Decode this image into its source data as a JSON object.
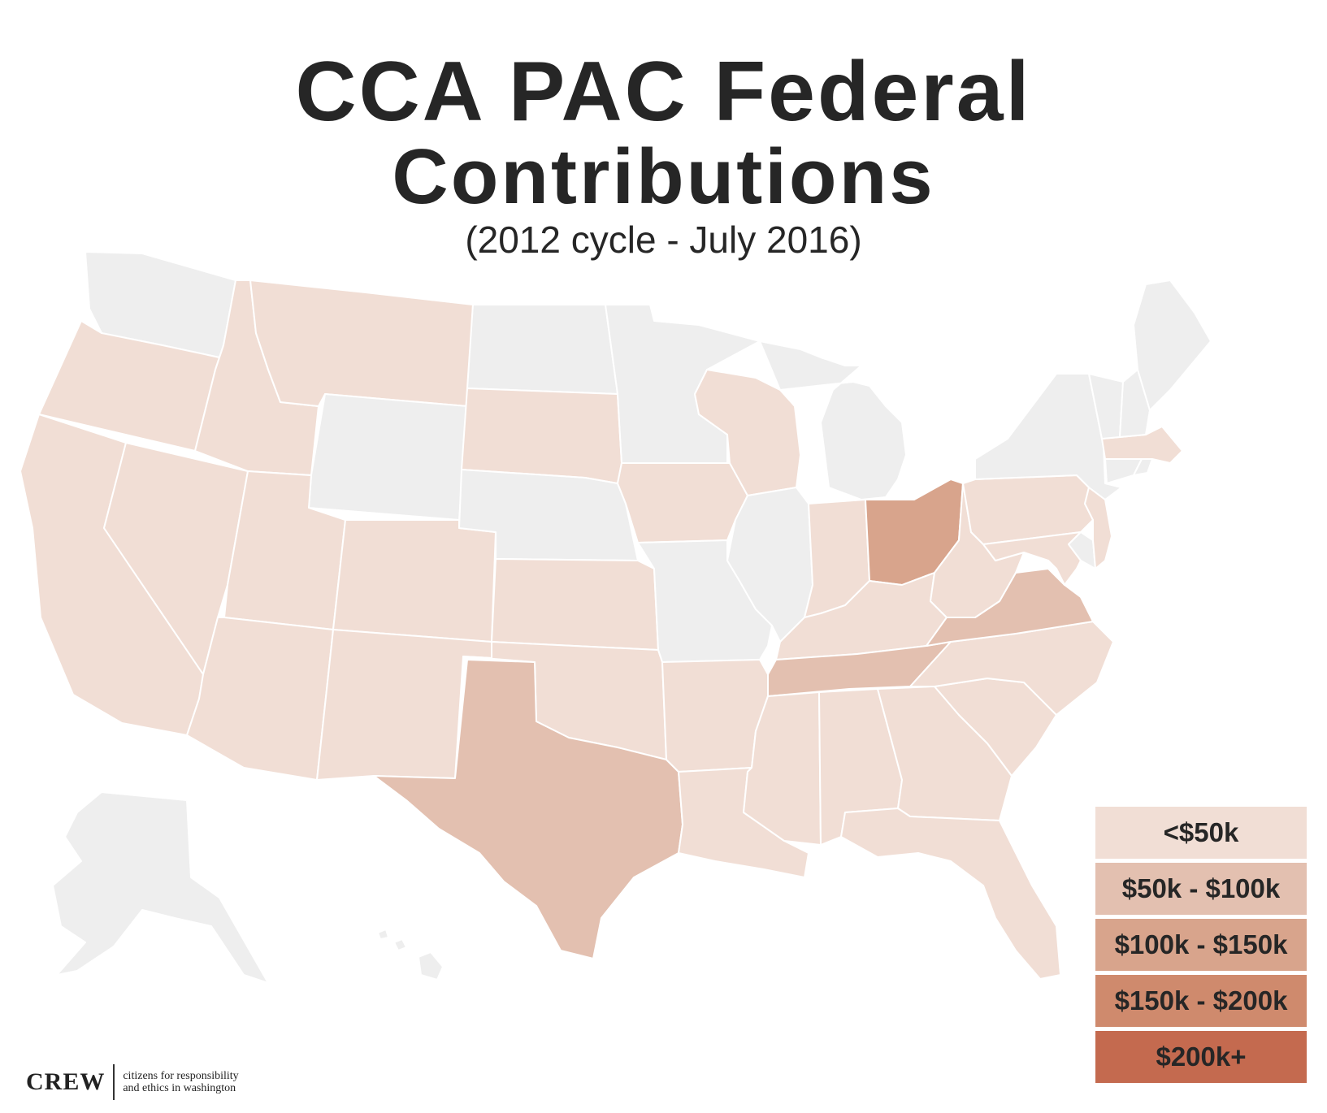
{
  "title": {
    "line1": "CCA PAC Federal",
    "line2": "Contributions",
    "subtitle": "(2012 cycle - July 2016)"
  },
  "colors": {
    "no_data": "#eeeeee",
    "border": "#ffffff",
    "text": "#262626"
  },
  "legend": {
    "items": [
      {
        "label": "<$50k",
        "color": "#f1ded5"
      },
      {
        "label": "$50k - $100k",
        "color": "#e3c0b0"
      },
      {
        "label": "$100k - $150k",
        "color": "#d8a48c"
      },
      {
        "label": "$150k - $200k",
        "color": "#cf8a6d"
      },
      {
        "label": "$200k+",
        "color": "#c46a4f"
      }
    ]
  },
  "map_data": {
    "type": "choropleth",
    "region": "United States",
    "categories": [
      "<$50k",
      "$50k - $100k",
      "$100k - $150k",
      "$150k - $200k",
      "$200k+"
    ],
    "states": {
      "WA": null,
      "OR": "<$50k",
      "CA": "<$50k",
      "NV": "<$50k",
      "ID": "<$50k",
      "MT": "<$50k",
      "WY": null,
      "UT": "<$50k",
      "AZ": "<$50k",
      "CO": "<$50k",
      "NM": "<$50k",
      "ND": null,
      "SD": "<$50k",
      "NE": null,
      "KS": "<$50k",
      "OK": "<$50k",
      "TX": "$50k - $100k",
      "MN": null,
      "IA": "<$50k",
      "MO": null,
      "AR": "<$50k",
      "LA": "<$50k",
      "WI": "<$50k",
      "IL": null,
      "MI": null,
      "IN": "<$50k",
      "OH": "$100k - $150k",
      "KY": "<$50k",
      "TN": "$50k - $100k",
      "MS": "<$50k",
      "AL": "<$50k",
      "GA": "<$50k",
      "FL": "<$50k",
      "SC": "<$50k",
      "NC": "<$50k",
      "VA": "$50k - $100k",
      "WV": "<$50k",
      "MD": "<$50k",
      "DE": null,
      "PA": "<$50k",
      "NJ": "<$50k",
      "NY": null,
      "CT": null,
      "RI": null,
      "MA": "<$50k",
      "VT": null,
      "NH": null,
      "ME": null,
      "AK": null,
      "HI": null
    }
  },
  "logo": {
    "wordmark": "CREW",
    "tagline_line1": "citizens for responsibility",
    "tagline_line2": "and ethics in washington"
  }
}
